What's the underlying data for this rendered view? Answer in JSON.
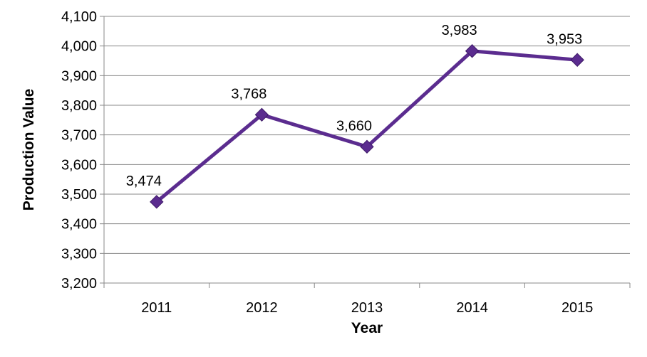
{
  "chart_data": {
    "type": "line",
    "title": "",
    "xlabel": "Year",
    "ylabel": "Production Value",
    "categories": [
      "2011",
      "2012",
      "2013",
      "2014",
      "2015"
    ],
    "series": [
      {
        "values": [
          3474,
          3768,
          3660,
          3983,
          3953
        ]
      }
    ],
    "data_labels": [
      "3,474",
      "3,768",
      "3,660",
      "3,983",
      "3,953"
    ],
    "ylim": [
      3200,
      4100
    ],
    "ytick_step": 100,
    "ytick_labels": [
      "3,200",
      "3,300",
      "3,400",
      "3,500",
      "3,600",
      "3,700",
      "3,800",
      "3,900",
      "4,000",
      "4,100"
    ],
    "grid": true,
    "legend": "none",
    "colors": {
      "line": "#5b2c8f",
      "marker": "#5b2c8f",
      "grid": "#888888",
      "axis": "#888888"
    }
  }
}
